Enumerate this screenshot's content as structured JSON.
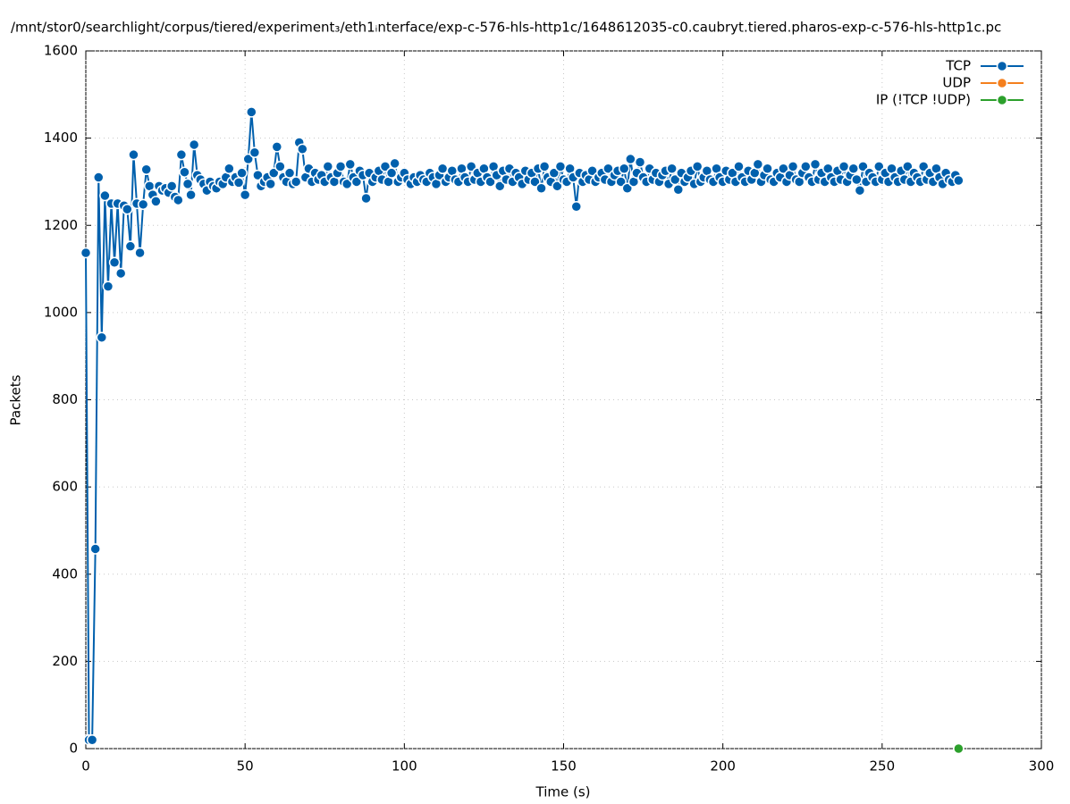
{
  "chart_data": {
    "type": "line",
    "title": "/mnt/stor0/searchlight/corpus/tiered/experiment₃/eth1ᵢnterface/exp-c-576-hls-http1c/1648612035-c0.caubryt.tiered.pharos-exp-c-576-hls-http1c.pc",
    "x_label": "Time (s)",
    "y_label": "Packets",
    "xlim": [
      0,
      300
    ],
    "xticks": [
      0,
      50,
      100,
      150,
      200,
      250,
      300
    ],
    "ylim": [
      0,
      1600
    ],
    "yticks": [
      0,
      200,
      400,
      600,
      800,
      1000,
      1200,
      1400,
      1600
    ],
    "grid": true,
    "legend": "top-right",
    "series": [
      {
        "name": "TCP",
        "color": "#0060ad",
        "x": [
          0,
          1,
          2,
          3,
          4,
          5,
          6,
          7,
          8,
          9,
          10,
          11,
          12,
          13,
          14,
          15,
          16,
          17,
          18,
          19,
          20,
          21,
          22,
          23,
          24,
          25,
          26,
          27,
          28,
          29,
          30,
          31,
          32,
          33,
          34,
          35,
          36,
          37,
          38,
          39,
          40,
          41,
          42,
          43,
          44,
          45,
          46,
          47,
          48,
          49,
          50,
          51,
          52,
          53,
          54,
          55,
          56,
          57,
          58,
          59,
          60,
          61,
          62,
          63,
          64,
          65,
          66,
          67,
          68,
          69,
          70,
          71,
          72,
          73,
          74,
          75,
          76,
          77,
          78,
          79,
          80,
          81,
          82,
          83,
          84,
          85,
          86,
          87,
          88,
          89,
          90,
          91,
          92,
          93,
          94,
          95,
          96,
          97,
          98,
          99,
          100,
          101,
          102,
          103,
          104,
          105,
          106,
          107,
          108,
          109,
          110,
          111,
          112,
          113,
          114,
          115,
          116,
          117,
          118,
          119,
          120,
          121,
          122,
          123,
          124,
          125,
          126,
          127,
          128,
          129,
          130,
          131,
          132,
          133,
          134,
          135,
          136,
          137,
          138,
          139,
          140,
          141,
          142,
          143,
          144,
          145,
          146,
          147,
          148,
          149,
          150,
          151,
          152,
          153,
          154,
          155,
          156,
          157,
          158,
          159,
          160,
          161,
          162,
          163,
          164,
          165,
          166,
          167,
          168,
          169,
          170,
          171,
          172,
          173,
          174,
          175,
          176,
          177,
          178,
          179,
          180,
          181,
          182,
          183,
          184,
          185,
          186,
          187,
          188,
          189,
          190,
          191,
          192,
          193,
          194,
          195,
          196,
          197,
          198,
          199,
          200,
          201,
          202,
          203,
          204,
          205,
          206,
          207,
          208,
          209,
          210,
          211,
          212,
          213,
          214,
          215,
          216,
          217,
          218,
          219,
          220,
          221,
          222,
          223,
          224,
          225,
          226,
          227,
          228,
          229,
          230,
          231,
          232,
          233,
          234,
          235,
          236,
          237,
          238,
          239,
          240,
          241,
          242,
          243,
          244,
          245,
          246,
          247,
          248,
          249,
          250,
          251,
          252,
          253,
          254,
          255,
          256,
          257,
          258,
          259,
          260,
          261,
          262,
          263,
          264,
          265,
          266,
          267,
          268,
          269,
          270,
          271,
          272,
          273,
          274
        ],
        "values": [
          1137,
          20,
          20,
          458,
          1310,
          943,
          1268,
          1060,
          1250,
          1115,
          1250,
          1090,
          1245,
          1237,
          1152,
          1362,
          1250,
          1137,
          1248,
          1328,
          1290,
          1270,
          1255,
          1290,
          1280,
          1285,
          1275,
          1290,
          1265,
          1258,
          1362,
          1322,
          1295,
          1270,
          1385,
          1315,
          1305,
          1295,
          1280,
          1300,
          1290,
          1285,
          1300,
          1295,
          1310,
          1330,
          1300,
          1310,
          1298,
          1320,
          1270,
          1352,
          1460,
          1367,
          1315,
          1290,
          1300,
          1310,
          1295,
          1320,
          1380,
          1335,
          1310,
          1300,
          1320,
          1295,
          1300,
          1390,
          1375,
          1310,
          1330,
          1300,
          1320,
          1305,
          1315,
          1300,
          1335,
          1310,
          1300,
          1320,
          1335,
          1300,
          1295,
          1340,
          1310,
          1300,
          1325,
          1315,
          1262,
          1320,
          1300,
          1310,
          1325,
          1305,
          1335,
          1300,
          1320,
          1342,
          1300,
          1310,
          1320,
          1305,
          1295,
          1310,
          1300,
          1315,
          1305,
          1300,
          1320,
          1310,
          1295,
          1315,
          1330,
          1300,
          1310,
          1325,
          1305,
          1300,
          1330,
          1310,
          1300,
          1335,
          1305,
          1320,
          1300,
          1330,
          1310,
          1300,
          1335,
          1315,
          1290,
          1325,
          1305,
          1330,
          1300,
          1320,
          1310,
          1295,
          1325,
          1305,
          1320,
          1300,
          1330,
          1285,
          1335,
          1310,
          1300,
          1320,
          1290,
          1335,
          1305,
          1300,
          1330,
          1310,
          1243,
          1320,
          1300,
          1315,
          1305,
          1325,
          1300,
          1310,
          1320,
          1305,
          1330,
          1300,
          1315,
          1325,
          1300,
          1330,
          1285,
          1352,
          1300,
          1320,
          1345,
          1310,
          1300,
          1330,
          1305,
          1320,
          1300,
          1315,
          1325,
          1295,
          1330,
          1305,
          1282,
          1320,
          1300,
          1310,
          1325,
          1295,
          1335,
          1300,
          1310,
          1325,
          1305,
          1300,
          1330,
          1310,
          1300,
          1325,
          1305,
          1320,
          1300,
          1335,
          1310,
          1300,
          1325,
          1305,
          1320,
          1340,
          1300,
          1315,
          1330,
          1305,
          1300,
          1320,
          1310,
          1330,
          1300,
          1315,
          1335,
          1305,
          1300,
          1320,
          1335,
          1310,
          1300,
          1340,
          1305,
          1320,
          1300,
          1330,
          1310,
          1300,
          1325,
          1305,
          1335,
          1300,
          1315,
          1330,
          1305,
          1280,
          1335,
          1300,
          1320,
          1310,
          1300,
          1335,
          1305,
          1320,
          1300,
          1330,
          1310,
          1300,
          1325,
          1305,
          1335,
          1300,
          1320,
          1310,
          1300,
          1335,
          1305,
          1320,
          1300,
          1330,
          1310,
          1295,
          1320,
          1305,
          1300,
          1315,
          1303
        ]
      },
      {
        "name": "UDP",
        "color": "#f47f1d",
        "x": [
          274
        ],
        "values": [
          0
        ]
      },
      {
        "name": "IP (!TCP  !UDP)",
        "color": "#2ca02c",
        "x": [
          274
        ],
        "values": [
          0
        ]
      }
    ]
  }
}
